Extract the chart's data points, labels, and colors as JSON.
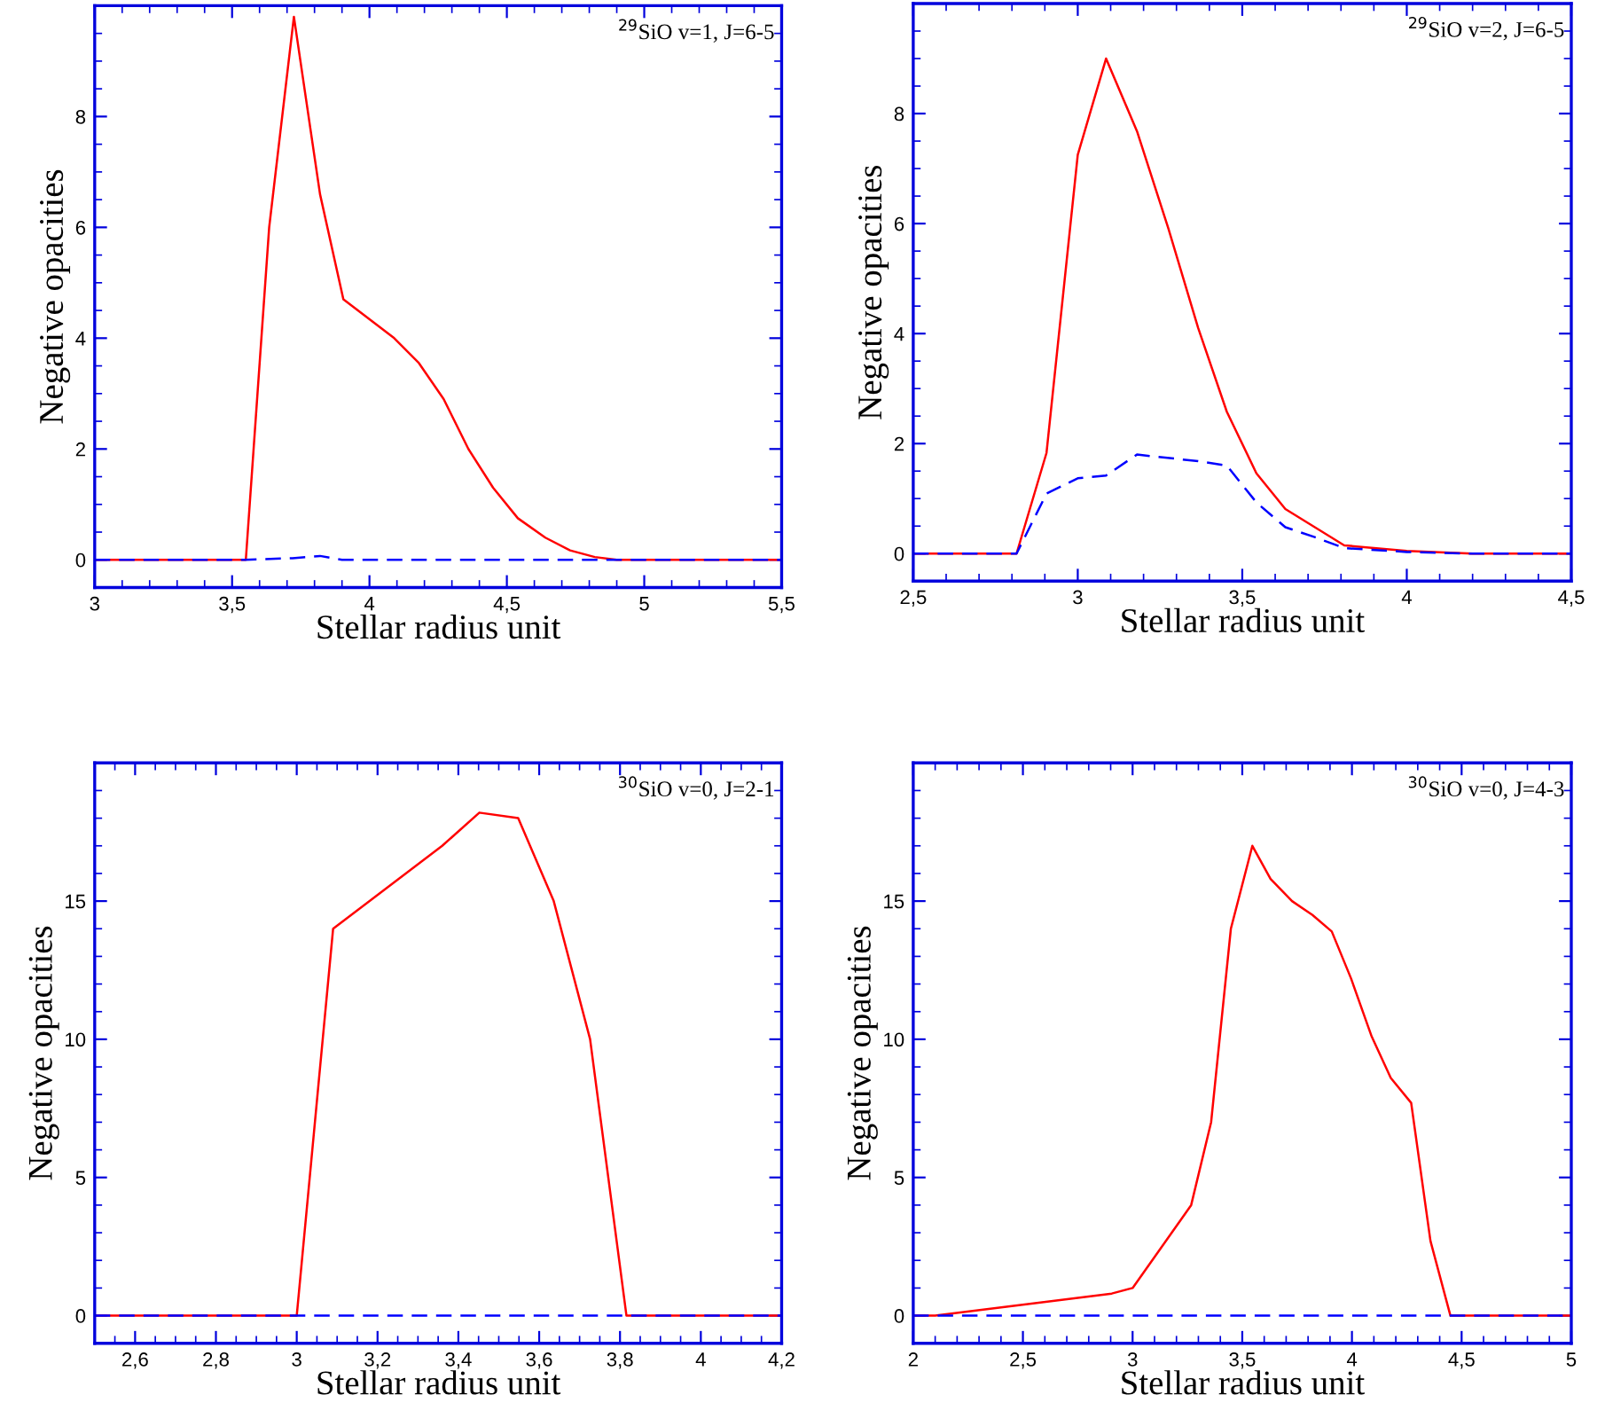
{
  "chart_data": [
    {
      "type": "line",
      "xlabel": "Stellar radius unit",
      "ylabel": "Negative opacities",
      "annotations": [
        "$^{29}$SiO v=1, J=6-5"
      ],
      "xlim": [
        3,
        5.5
      ],
      "ylim": [
        -0.5,
        10
      ],
      "xticks": [
        3,
        {
          "value": 3.5,
          "label": "3,5"
        },
        4,
        {
          "value": 4.5,
          "label": "4,5"
        },
        5,
        {
          "value": 5.5,
          "label": "5,5"
        }
      ],
      "yticks": [
        0,
        2,
        4,
        6,
        8
      ],
      "grid": false,
      "legend": false,
      "series": [
        {
          "color": "#ff0000",
          "line_style": "solid",
          "x": [
            3,
            3.55,
            3.635,
            3.725,
            3.82,
            3.905,
            4.09,
            4.18,
            4.27,
            4.36,
            4.45,
            4.54,
            4.64,
            4.73,
            4.82,
            4.9,
            5.5
          ],
          "values": [
            0,
            0,
            6.0,
            9.8,
            6.6,
            4.7,
            4.0,
            3.55,
            2.9,
            2.0,
            1.3,
            0.75,
            0.4,
            0.17,
            0.05,
            0,
            0
          ]
        },
        {
          "color": "#0000ff",
          "line_style": "dashed",
          "x": [
            3,
            3.55,
            3.72,
            3.82,
            3.9,
            5.5
          ],
          "values": [
            0,
            0,
            0.03,
            0.07,
            0,
            0
          ]
        }
      ]
    },
    {
      "type": "line",
      "xlabel": "Stellar radius unit",
      "ylabel": "Negative opacities",
      "annotations": [
        "$^{29}$SiO v=2, J=6-5"
      ],
      "xlim": [
        2.5,
        4.5
      ],
      "ylim": [
        -0.5,
        10
      ],
      "xticks": [
        {
          "value": 2.5,
          "label": "2,5"
        },
        3,
        {
          "value": 3.5,
          "label": "3,5"
        },
        4,
        {
          "value": 4.5,
          "label": "4,5"
        }
      ],
      "yticks": [
        0,
        2,
        4,
        6,
        8
      ],
      "grid": false,
      "legend": false,
      "series": [
        {
          "color": "#ff0000",
          "line_style": "solid",
          "x": [
            2.5,
            2.814,
            2.905,
            3.0,
            3.086,
            3.18,
            3.276,
            3.366,
            3.453,
            3.543,
            3.631,
            3.81,
            4.0,
            4.2,
            4.5
          ],
          "values": [
            0,
            0,
            1.83,
            7.25,
            9.0,
            7.68,
            5.9,
            4.1,
            2.58,
            1.46,
            0.81,
            0.15,
            0.05,
            0,
            0
          ]
        },
        {
          "color": "#0000ff",
          "line_style": "dashed",
          "x": [
            2.5,
            2.814,
            2.905,
            3.0,
            3.086,
            3.18,
            3.366,
            3.453,
            3.543,
            3.631,
            3.72,
            3.81,
            4.0,
            4.2,
            4.5
          ],
          "values": [
            0,
            0,
            1.09,
            1.37,
            1.42,
            1.8,
            1.68,
            1.6,
            0.93,
            0.48,
            0.3,
            0.1,
            0.03,
            0,
            0
          ]
        }
      ]
    },
    {
      "type": "line",
      "xlabel": "Stellar radius unit",
      "ylabel": "Negative opacities",
      "annotations": [
        "$^{30}$SiO v=0, J=2-1"
      ],
      "xlim": [
        2.5,
        4.2
      ],
      "ylim": [
        -1,
        20
      ],
      "xticks": [
        {
          "value": 2.6,
          "label": "2,6"
        },
        {
          "value": 2.8,
          "label": "2,8"
        },
        3,
        {
          "value": 3.2,
          "label": "3,2"
        },
        {
          "value": 3.4,
          "label": "3,4"
        },
        {
          "value": 3.6,
          "label": "3,6"
        },
        {
          "value": 3.8,
          "label": "3,8"
        },
        4,
        {
          "value": 4.2,
          "label": "4,2"
        }
      ],
      "yticks": [
        0,
        5,
        10,
        15
      ],
      "grid": false,
      "legend": false,
      "series": [
        {
          "color": "#ff0000",
          "line_style": "solid",
          "x": [
            2.5,
            3.0,
            3.09,
            3.36,
            3.452,
            3.548,
            3.636,
            3.726,
            3.816,
            4.2
          ],
          "values": [
            0,
            0,
            14.0,
            17.0,
            18.2,
            18.0,
            15.0,
            10.0,
            0,
            0
          ]
        },
        {
          "color": "#0000ff",
          "line_style": "dashed",
          "x": [
            2.5,
            4.2
          ],
          "values": [
            0,
            0
          ]
        }
      ]
    },
    {
      "type": "line",
      "xlabel": "Stellar radius unit",
      "ylabel": "Negative opacities",
      "annotations": [
        "$^{30}$SiO v=0, J=4-3"
      ],
      "xlim": [
        2,
        5
      ],
      "ylim": [
        -1,
        20
      ],
      "xticks": [
        2,
        {
          "value": 2.5,
          "label": "2,5"
        },
        3,
        {
          "value": 3.5,
          "label": "3,5"
        },
        4,
        {
          "value": 4.5,
          "label": "4,5"
        },
        5
      ],
      "yticks": [
        0,
        5,
        10,
        15
      ],
      "grid": false,
      "legend": false,
      "series": [
        {
          "color": "#ff0000",
          "line_style": "solid",
          "x": [
            2.0,
            2.1,
            2.905,
            3.0,
            3.267,
            3.358,
            3.448,
            3.546,
            3.629,
            3.727,
            3.82,
            3.908,
            3.996,
            4.09,
            4.177,
            4.27,
            4.358,
            4.449,
            5.0
          ],
          "values": [
            0,
            0,
            0.8,
            1.0,
            4.0,
            7.0,
            14.0,
            17.0,
            15.8,
            15.0,
            14.5,
            13.9,
            12.2,
            10.1,
            8.6,
            7.7,
            2.7,
            0,
            0
          ]
        },
        {
          "color": "#0000ff",
          "line_style": "dashed",
          "x": [
            2,
            5
          ],
          "values": [
            0,
            0
          ]
        }
      ]
    }
  ]
}
